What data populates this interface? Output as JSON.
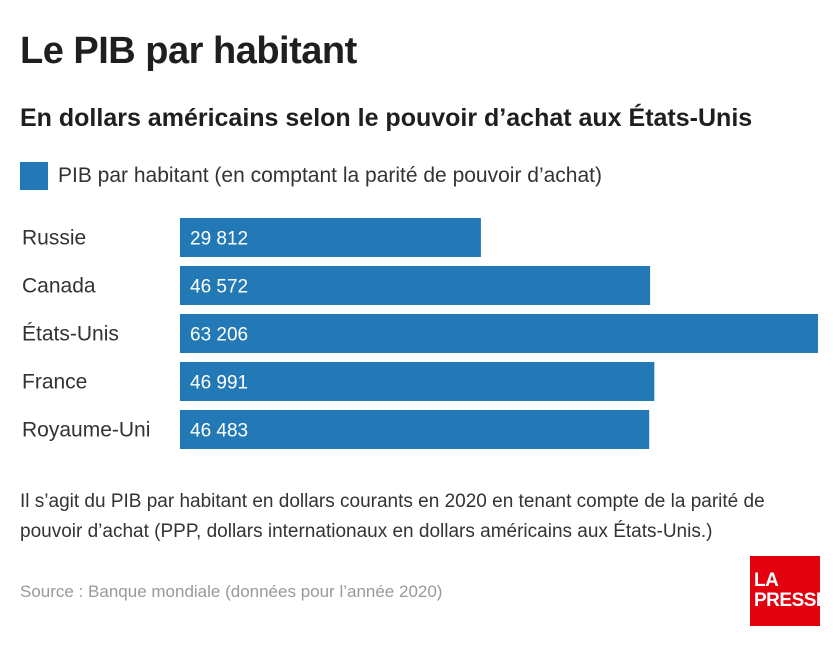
{
  "title": "Le PIB par habitant",
  "subtitle": "En dollars américains selon le pouvoir d’achat aux États-Unis",
  "legend": {
    "label": "PIB par habitant (en comptant la parité de pouvoir d’achat)"
  },
  "note": "Il s’agit du PIB par habitant en dollars courants en 2020 en tenant compte de la parité de pouvoir d’achat (PPP, dollars internationaux en dollars américains aux États-Unis.)",
  "source": "Source : Banque mondiale (données pour l’année 2020)",
  "logo": {
    "line1": "LA",
    "line2": "PRESSE"
  },
  "colors": {
    "bar": "#2379b5",
    "logo": "#e3000f"
  },
  "chart_data": {
    "type": "bar",
    "orientation": "horizontal",
    "categories": [
      "Russie",
      "Canada",
      "États-Unis",
      "France",
      "Royaume-Uni"
    ],
    "series": [
      {
        "name": "PIB par habitant (en comptant la parité de pouvoir d’achat)",
        "values": [
          29812,
          46572,
          63206,
          46991,
          46483
        ],
        "labels": [
          "29 812",
          "46 572",
          "63 206",
          "46 991",
          "46 483"
        ]
      }
    ],
    "title": "Le PIB par habitant",
    "xlabel": "",
    "ylabel": "",
    "xlim": [
      0,
      63206
    ],
    "grid": false,
    "legend_position": "top-left"
  }
}
